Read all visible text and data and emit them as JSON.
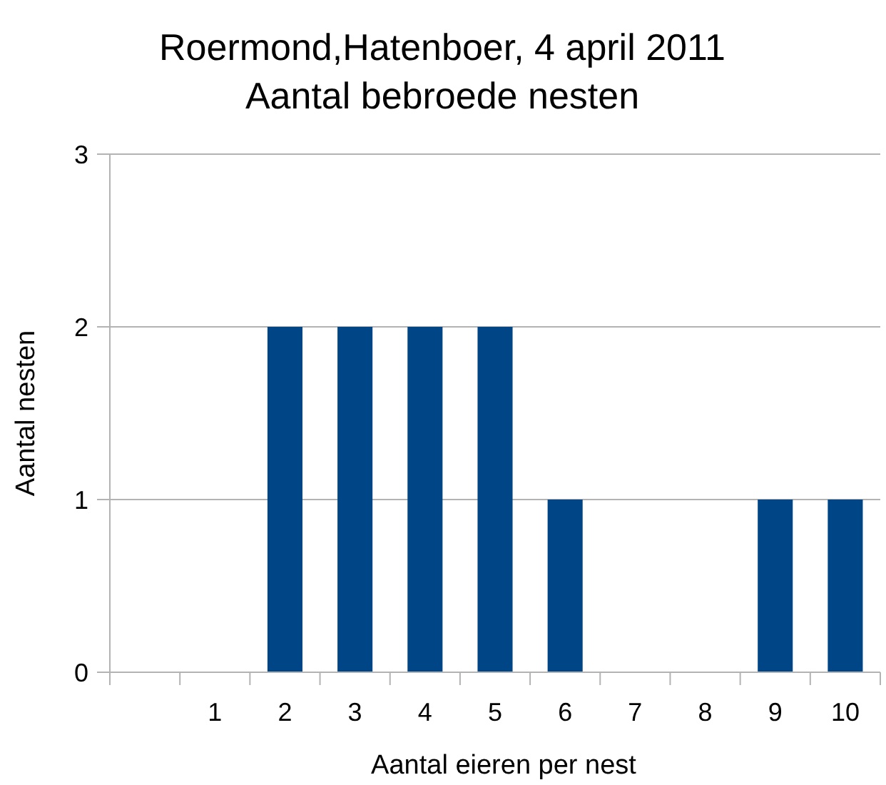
{
  "chart_data": {
    "type": "bar",
    "title": "Roermond,Hatenboer, 4 april 2011",
    "subtitle": "Aantal bebroede nesten",
    "xlabel": "Aantal eieren per nest",
    "ylabel": "Aantal nesten",
    "categories": [
      null,
      "1",
      "2",
      "3",
      "4",
      "5",
      "6",
      "7",
      "8",
      "9",
      "10"
    ],
    "values": [
      0,
      0,
      2,
      2,
      2,
      2,
      1,
      0,
      0,
      1,
      1
    ],
    "color": "#004586",
    "ylim": [
      0,
      3
    ],
    "yticks": [
      0,
      1,
      2,
      3
    ],
    "grid": "y"
  }
}
